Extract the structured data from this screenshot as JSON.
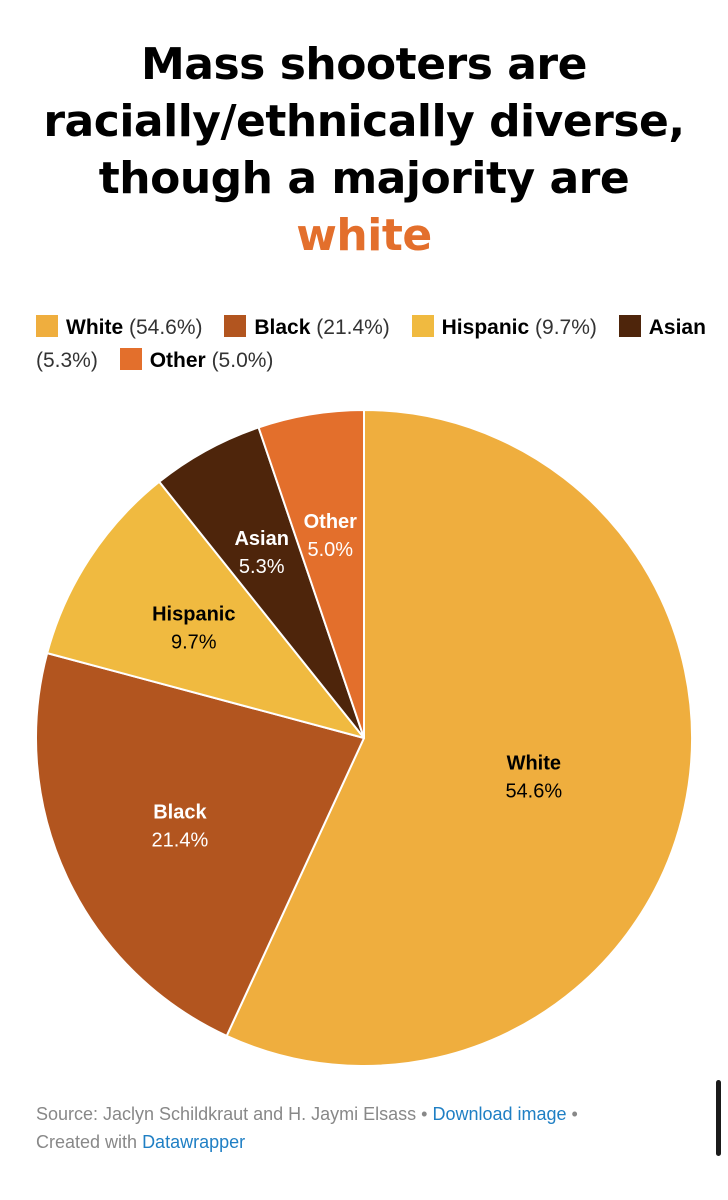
{
  "chart_data": {
    "type": "pie",
    "title_lines": [
      "Mass shooters are",
      "racially/ethnically diverse,",
      "though a majority are"
    ],
    "title_accent": "white",
    "slices": [
      {
        "name": "White",
        "value": 54.6,
        "label": "54.6%",
        "legend_pct": "(54.6%)",
        "color": "#efae3e",
        "label_color": "#000000"
      },
      {
        "name": "Black",
        "value": 21.4,
        "label": "21.4%",
        "legend_pct": "(21.4%)",
        "color": "#b2551f",
        "label_color": "#ffffff"
      },
      {
        "name": "Hispanic",
        "value": 9.7,
        "label": "9.7%",
        "legend_pct": "(9.7%)",
        "color": "#f0ba40",
        "label_color": "#000000"
      },
      {
        "name": "Asian",
        "value": 5.3,
        "label": "5.3%",
        "legend_pct": "(5.3%)",
        "color": "#4e250b",
        "label_color": "#ffffff"
      },
      {
        "name": "Other",
        "value": 5.0,
        "label": "5.0%",
        "legend_pct": "(5.0%)",
        "color": "#e36f2c",
        "label_color": "#ffffff"
      }
    ],
    "legend_placement": "top"
  },
  "footer": {
    "source_text": "Source: Jaclyn Schildkraut and H. Jaymi Elsass",
    "separator": " • ",
    "download_link": "Download image",
    "created_text": "Created with ",
    "datawrapper_link": "Datawrapper"
  }
}
